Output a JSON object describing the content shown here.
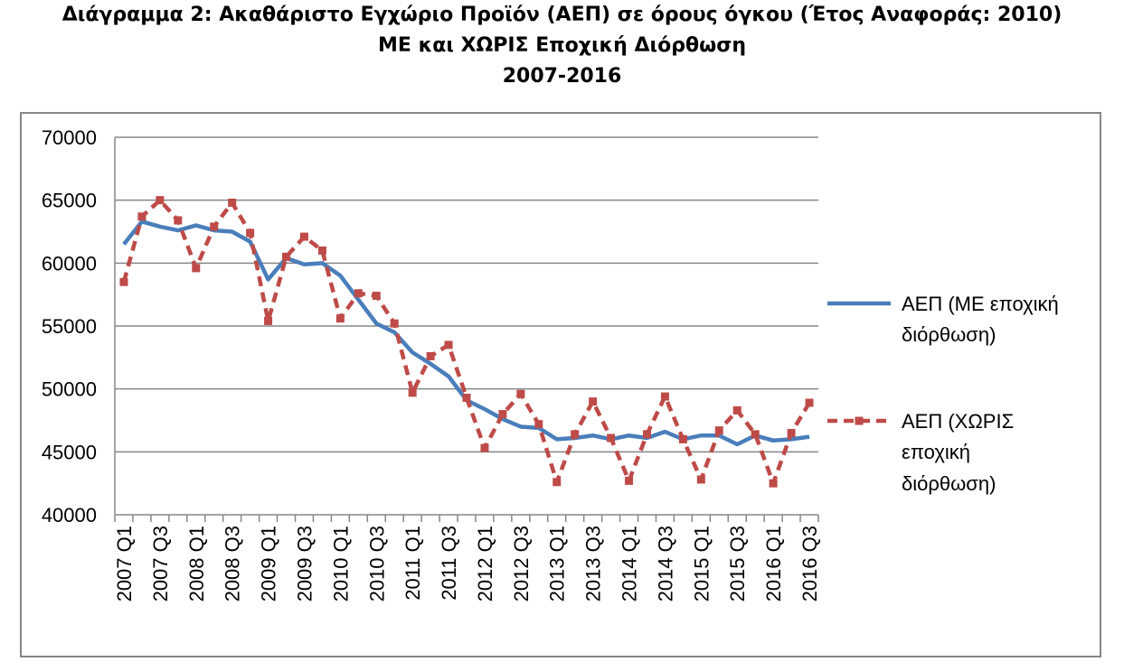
{
  "title": {
    "line1": "Διάγραμμα 2: Ακαθάριστο Εγχώριο Προϊόν (ΑΕΠ) σε όρους όγκου (Έτος Αναφοράς: 2010)",
    "line2": "ΜΕ και ΧΩΡΙΣ Εποχική Διόρθωση",
    "line3": "2007-2016"
  },
  "chart_data": {
    "type": "line",
    "title": "Διάγραμμα 2: Ακαθάριστο Εγχώριο Προϊόν (ΑΕΠ) σε όρους όγκου (Έτος Αναφοράς: 2010) ΜΕ και ΧΩΡΙΣ Εποχική Διόρθωση 2007-2016",
    "xlabel": "",
    "ylabel": "",
    "ylim": [
      40000,
      70000
    ],
    "yticks": [
      40000,
      45000,
      50000,
      55000,
      60000,
      65000,
      70000
    ],
    "grid": true,
    "legend_position": "right",
    "x": [
      "2007 Q1",
      "2007 Q2",
      "2007 Q3",
      "2007 Q4",
      "2008 Q1",
      "2008 Q2",
      "2008 Q3",
      "2008 Q4",
      "2009 Q1",
      "2009 Q2",
      "2009 Q3",
      "2009 Q4",
      "2010 Q1",
      "2010 Q2",
      "2010 Q3",
      "2010 Q4",
      "2011 Q1",
      "2011 Q2",
      "2011 Q3",
      "2011 Q4",
      "2012 Q1",
      "2012 Q2",
      "2012 Q3",
      "2012 Q4",
      "2013 Q1",
      "2013 Q2",
      "2013 Q3",
      "2013 Q4",
      "2014 Q1",
      "2014 Q2",
      "2014 Q3",
      "2014 Q4",
      "2015 Q1",
      "2015 Q2",
      "2015 Q3",
      "2015 Q4",
      "2016 Q1",
      "2016 Q2",
      "2016 Q3"
    ],
    "tick_labels": [
      "2007 Q1",
      "2007 Q3",
      "2008 Q1",
      "2008 Q3",
      "2009 Q1",
      "2009 Q3",
      "2010 Q1",
      "2010 Q3",
      "2011 Q1",
      "2011 Q3",
      "2012 Q1",
      "2012 Q3",
      "2013 Q1",
      "2013 Q3",
      "2014 Q1",
      "2014 Q3",
      "2015 Q1",
      "2015 Q3",
      "2016 Q1",
      "2016 Q3"
    ],
    "series": [
      {
        "name": "ΑΕΠ (ΜΕ εποχική διόρθωση)",
        "legend_lines": [
          "ΑΕΠ (ΜΕ εποχική",
          "διόρθωση)"
        ],
        "color": "#4a7ebb",
        "style": "solid",
        "values": [
          61500,
          63300,
          62900,
          62600,
          63000,
          62600,
          62500,
          61700,
          58700,
          60400,
          59900,
          60000,
          59000,
          57100,
          55200,
          54500,
          52900,
          52000,
          51000,
          49100,
          48400,
          47600,
          47000,
          46900,
          46000,
          46100,
          46300,
          46000,
          46300,
          46100,
          46600,
          46000,
          46300,
          46300,
          45600,
          46300,
          45900,
          46000,
          46200
        ]
      },
      {
        "name": "ΑΕΠ (ΧΩΡΙΣ εποχική διόρθωση)",
        "legend_lines": [
          "ΑΕΠ (ΧΩΡΙΣ",
          "εποχική",
          "διόρθωση)"
        ],
        "color": "#be4b48",
        "style": "dashed",
        "values": [
          58500,
          63700,
          65000,
          63400,
          59600,
          62900,
          64800,
          62400,
          55400,
          60500,
          62100,
          61000,
          55600,
          57600,
          57400,
          55200,
          49700,
          52600,
          53500,
          49300,
          45300,
          48000,
          49600,
          47200,
          42600,
          46400,
          49000,
          46100,
          42700,
          46400,
          49400,
          46000,
          42800,
          46700,
          48300,
          46400,
          42500,
          46500,
          48900
        ]
      }
    ]
  }
}
